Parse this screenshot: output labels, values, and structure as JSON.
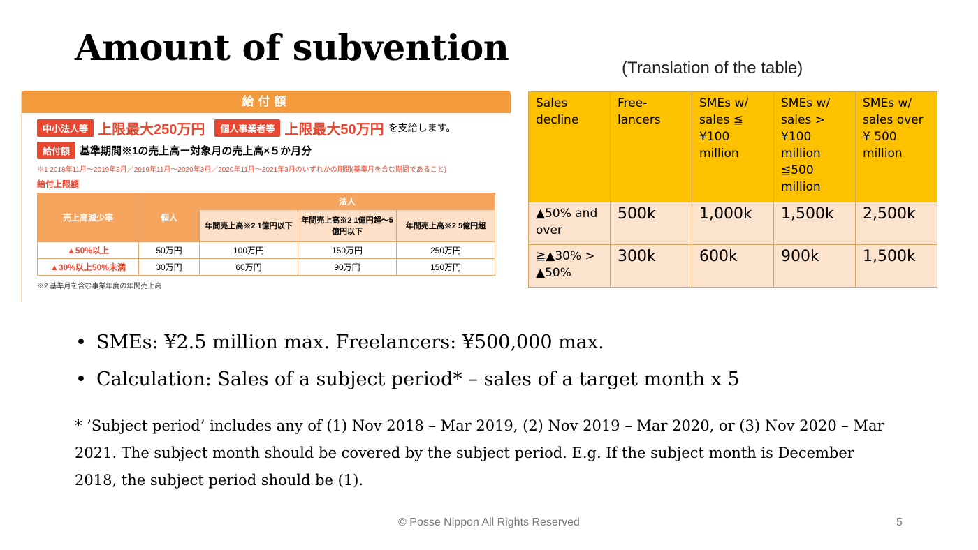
{
  "title": "Amount of subvention",
  "translation_caption": "(Translation of the table)",
  "jp": {
    "header": "給付額",
    "line1_badge_a": "中小法人等",
    "line1_text_a": "上限最大250万円",
    "line1_badge_b": "個人事業者等",
    "line1_text_b": "上限最大50万円",
    "line1_suffix": "を支給します。",
    "line2_badge": "給付額",
    "line2_text": "基準期間※1の売上高ー対象月の売上高×５か月分",
    "note1": "※1 2018年11月～2019年3月／2019年11月～2020年3月／2020年11月～2021年3月のいずれかの期間(基準月を含む期間であること)",
    "limit_label": "給付上限額",
    "table": {
      "h_decline": "売上高減少率",
      "h_individual": "個人",
      "h_corp": "法人",
      "h_c1": "年間売上高※2 1億円以下",
      "h_c2": "年間売上高※2 1億円超～5億円以下",
      "h_c3": "年間売上高※2 5億円超",
      "rows": [
        {
          "rate": "▲50%以上",
          "ind": "50万円",
          "c1": "100万円",
          "c2": "150万円",
          "c3": "250万円"
        },
        {
          "rate": "▲30%以上50%未満",
          "ind": "30万円",
          "c1": "60万円",
          "c2": "90万円",
          "c3": "150万円"
        }
      ]
    },
    "note2": "※2 基準月を含む事業年度の年間売上高"
  },
  "translation": {
    "headers": [
      "Sales decline",
      "Free- lancers",
      "SMEs w/ sales ≦ ¥100 million",
      "SMEs w/ sales > ¥100 million ≦500 million",
      "SMEs w/ sales over ¥ 500 million"
    ],
    "rows": [
      [
        "▲50% and over",
        "500k",
        "1,000k",
        "1,500k",
        "2,500k"
      ],
      [
        "≧▲30% > ▲50%",
        "300k",
        "600k",
        "900k",
        "1,500k"
      ]
    ]
  },
  "bullets": [
    "SMEs: ¥2.5 million max. Freelancers: ¥500,000 max.",
    "Calculation: Sales of a subject period* – sales of a target month x 5"
  ],
  "footnote": "* ’Subject period’ includes any of (1) Nov 2018 – Mar 2019, (2) Nov 2019 – Mar 2020, or (3) Nov 2020 – Mar 2021. The subject month should be covered by the subject period. E.g. If the subject month is December 2018, the subject period should be (1).",
  "copyright": "© Posse Nippon All Rights Reserved",
  "page_number": "5",
  "colors": {
    "jp_orange": "#f29a3c",
    "jp_red": "#e8462f",
    "table_header": "#fcc200",
    "table_row": "#fbe3cd"
  }
}
